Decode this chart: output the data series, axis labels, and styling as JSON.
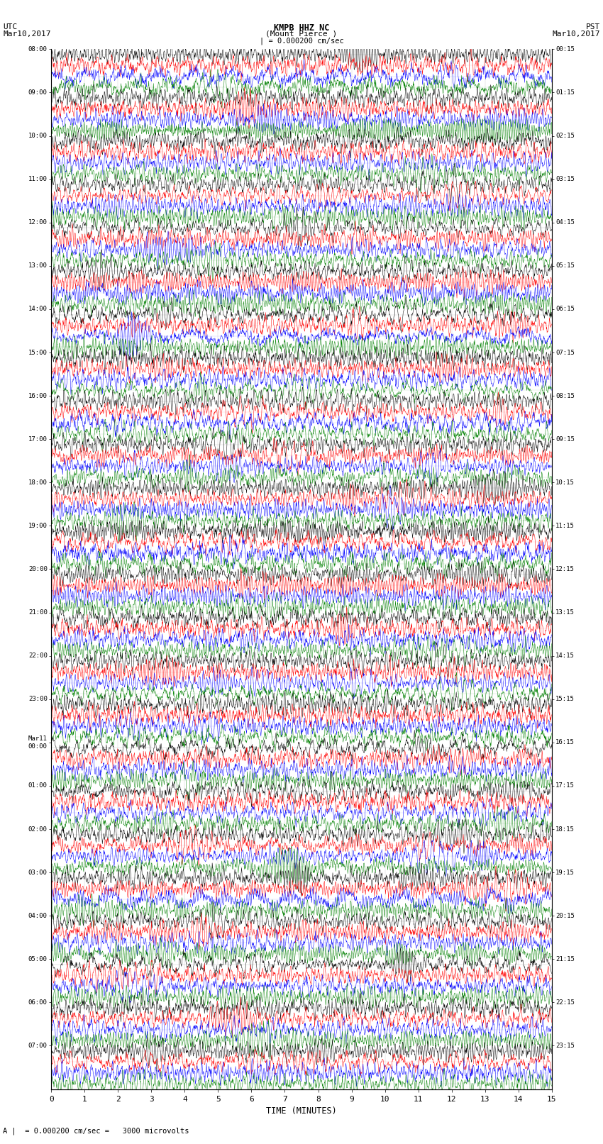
{
  "title_line1": "KMPB HHZ NC",
  "title_line2": "(Mount Pierce )",
  "title_line3": "| = 0.000200 cm/sec",
  "left_header_line1": "UTC",
  "left_header_line2": "Mar10,2017",
  "right_header_line1": "PST",
  "right_header_line2": "Mar10,2017",
  "bottom_label": "TIME (MINUTES)",
  "scale_text": "A |  = 0.000200 cm/sec =   3000 microvolts",
  "utc_times": [
    "08:00",
    "09:00",
    "10:00",
    "11:00",
    "12:00",
    "13:00",
    "14:00",
    "15:00",
    "16:00",
    "17:00",
    "18:00",
    "19:00",
    "20:00",
    "21:00",
    "22:00",
    "23:00",
    "Mar11\n00:00",
    "01:00",
    "02:00",
    "03:00",
    "04:00",
    "05:00",
    "06:00",
    "07:00"
  ],
  "pst_times": [
    "00:15",
    "01:15",
    "02:15",
    "03:15",
    "04:15",
    "05:15",
    "06:15",
    "07:15",
    "08:15",
    "09:15",
    "10:15",
    "11:15",
    "12:15",
    "13:15",
    "14:15",
    "15:15",
    "16:15",
    "17:15",
    "18:15",
    "19:15",
    "20:15",
    "21:15",
    "22:15",
    "23:15"
  ],
  "trace_colors": [
    "black",
    "red",
    "blue",
    "green"
  ],
  "num_hours": 24,
  "traces_per_hour": 4,
  "time_ticks": [
    0,
    1,
    2,
    3,
    4,
    5,
    6,
    7,
    8,
    9,
    10,
    11,
    12,
    13,
    14,
    15
  ],
  "background_color": "white",
  "seed": 42
}
